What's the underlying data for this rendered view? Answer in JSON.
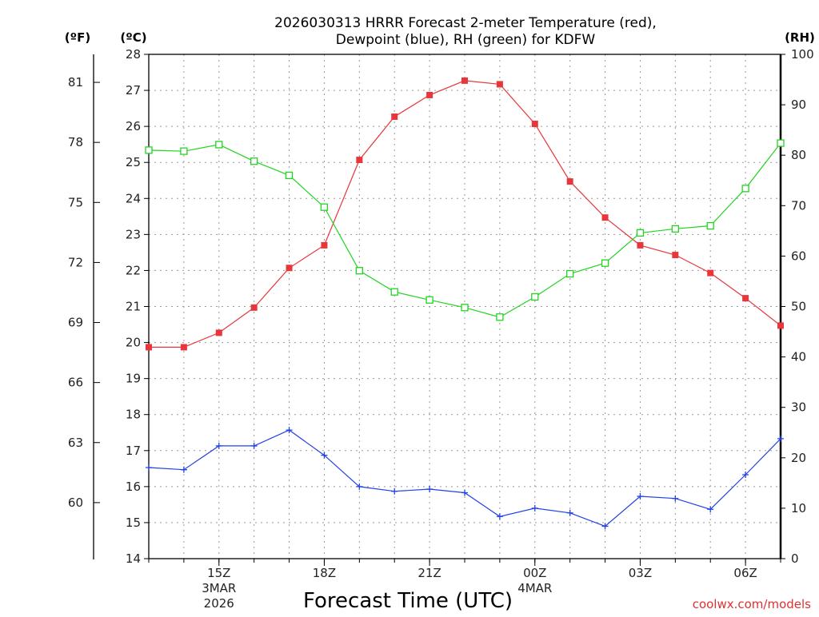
{
  "chart_data": {
    "type": "line",
    "title_line1": "2026030313 HRRR Forecast 2-meter Temperature (red),",
    "title_line2": "Dewpoint (blue), RH (green) for KDFW",
    "unit_f": "(ºF)",
    "unit_c": "(ºC)",
    "unit_rh": "(RH)",
    "xlabel": "Forecast Time (UTC)",
    "credit": "coolwx.com/models",
    "x_hours": [
      13,
      14,
      15,
      16,
      17,
      18,
      19,
      20,
      21,
      22,
      23,
      24,
      25,
      26,
      27,
      28,
      29,
      30,
      31
    ],
    "xlim": [
      13,
      31
    ],
    "x_ticks": [
      {
        "hour": 15,
        "labels": [
          "15Z",
          "3MAR",
          "2026"
        ]
      },
      {
        "hour": 18,
        "labels": [
          "18Z"
        ]
      },
      {
        "hour": 21,
        "labels": [
          "21Z"
        ]
      },
      {
        "hour": 24,
        "labels": [
          "00Z",
          "4MAR"
        ]
      },
      {
        "hour": 27,
        "labels": [
          "03Z"
        ]
      },
      {
        "hour": 30,
        "labels": [
          "06Z"
        ]
      }
    ],
    "y_celsius": {
      "lim": [
        14,
        28
      ],
      "ticks": [
        14,
        15,
        16,
        17,
        18,
        19,
        20,
        21,
        22,
        23,
        24,
        25,
        26,
        27,
        28
      ]
    },
    "y_fahrenheit": {
      "ticks": [
        60,
        63,
        66,
        69,
        72,
        75,
        78,
        81
      ]
    },
    "y_rh": {
      "lim": [
        0,
        100
      ],
      "ticks": [
        0,
        10,
        20,
        30,
        40,
        50,
        60,
        70,
        80,
        90,
        100
      ]
    },
    "series": [
      {
        "name": "Temperature",
        "axis": "celsius",
        "color": "#e8363a",
        "marker": "filled-square",
        "values": [
          19.87,
          19.87,
          20.27,
          20.97,
          22.07,
          22.7,
          25.07,
          26.27,
          26.87,
          27.27,
          27.17,
          26.07,
          24.47,
          23.47,
          22.7,
          22.43,
          21.93,
          21.23,
          20.47
        ]
      },
      {
        "name": "Dewpoint",
        "axis": "celsius",
        "color": "#2040e8",
        "marker": "plus",
        "values": [
          16.53,
          16.47,
          17.13,
          17.13,
          17.57,
          16.87,
          16.0,
          15.87,
          15.93,
          15.83,
          15.17,
          15.4,
          15.27,
          14.9,
          15.73,
          15.67,
          15.37,
          16.33,
          17.33
        ]
      },
      {
        "name": "RH",
        "axis": "rh",
        "color": "#22d422",
        "marker": "open-square",
        "values": [
          81.0,
          80.8,
          82.1,
          78.8,
          76.0,
          69.7,
          57.1,
          52.9,
          51.3,
          49.8,
          47.9,
          51.9,
          56.5,
          58.6,
          64.6,
          65.4,
          66.0,
          73.4,
          82.4
        ]
      }
    ]
  }
}
